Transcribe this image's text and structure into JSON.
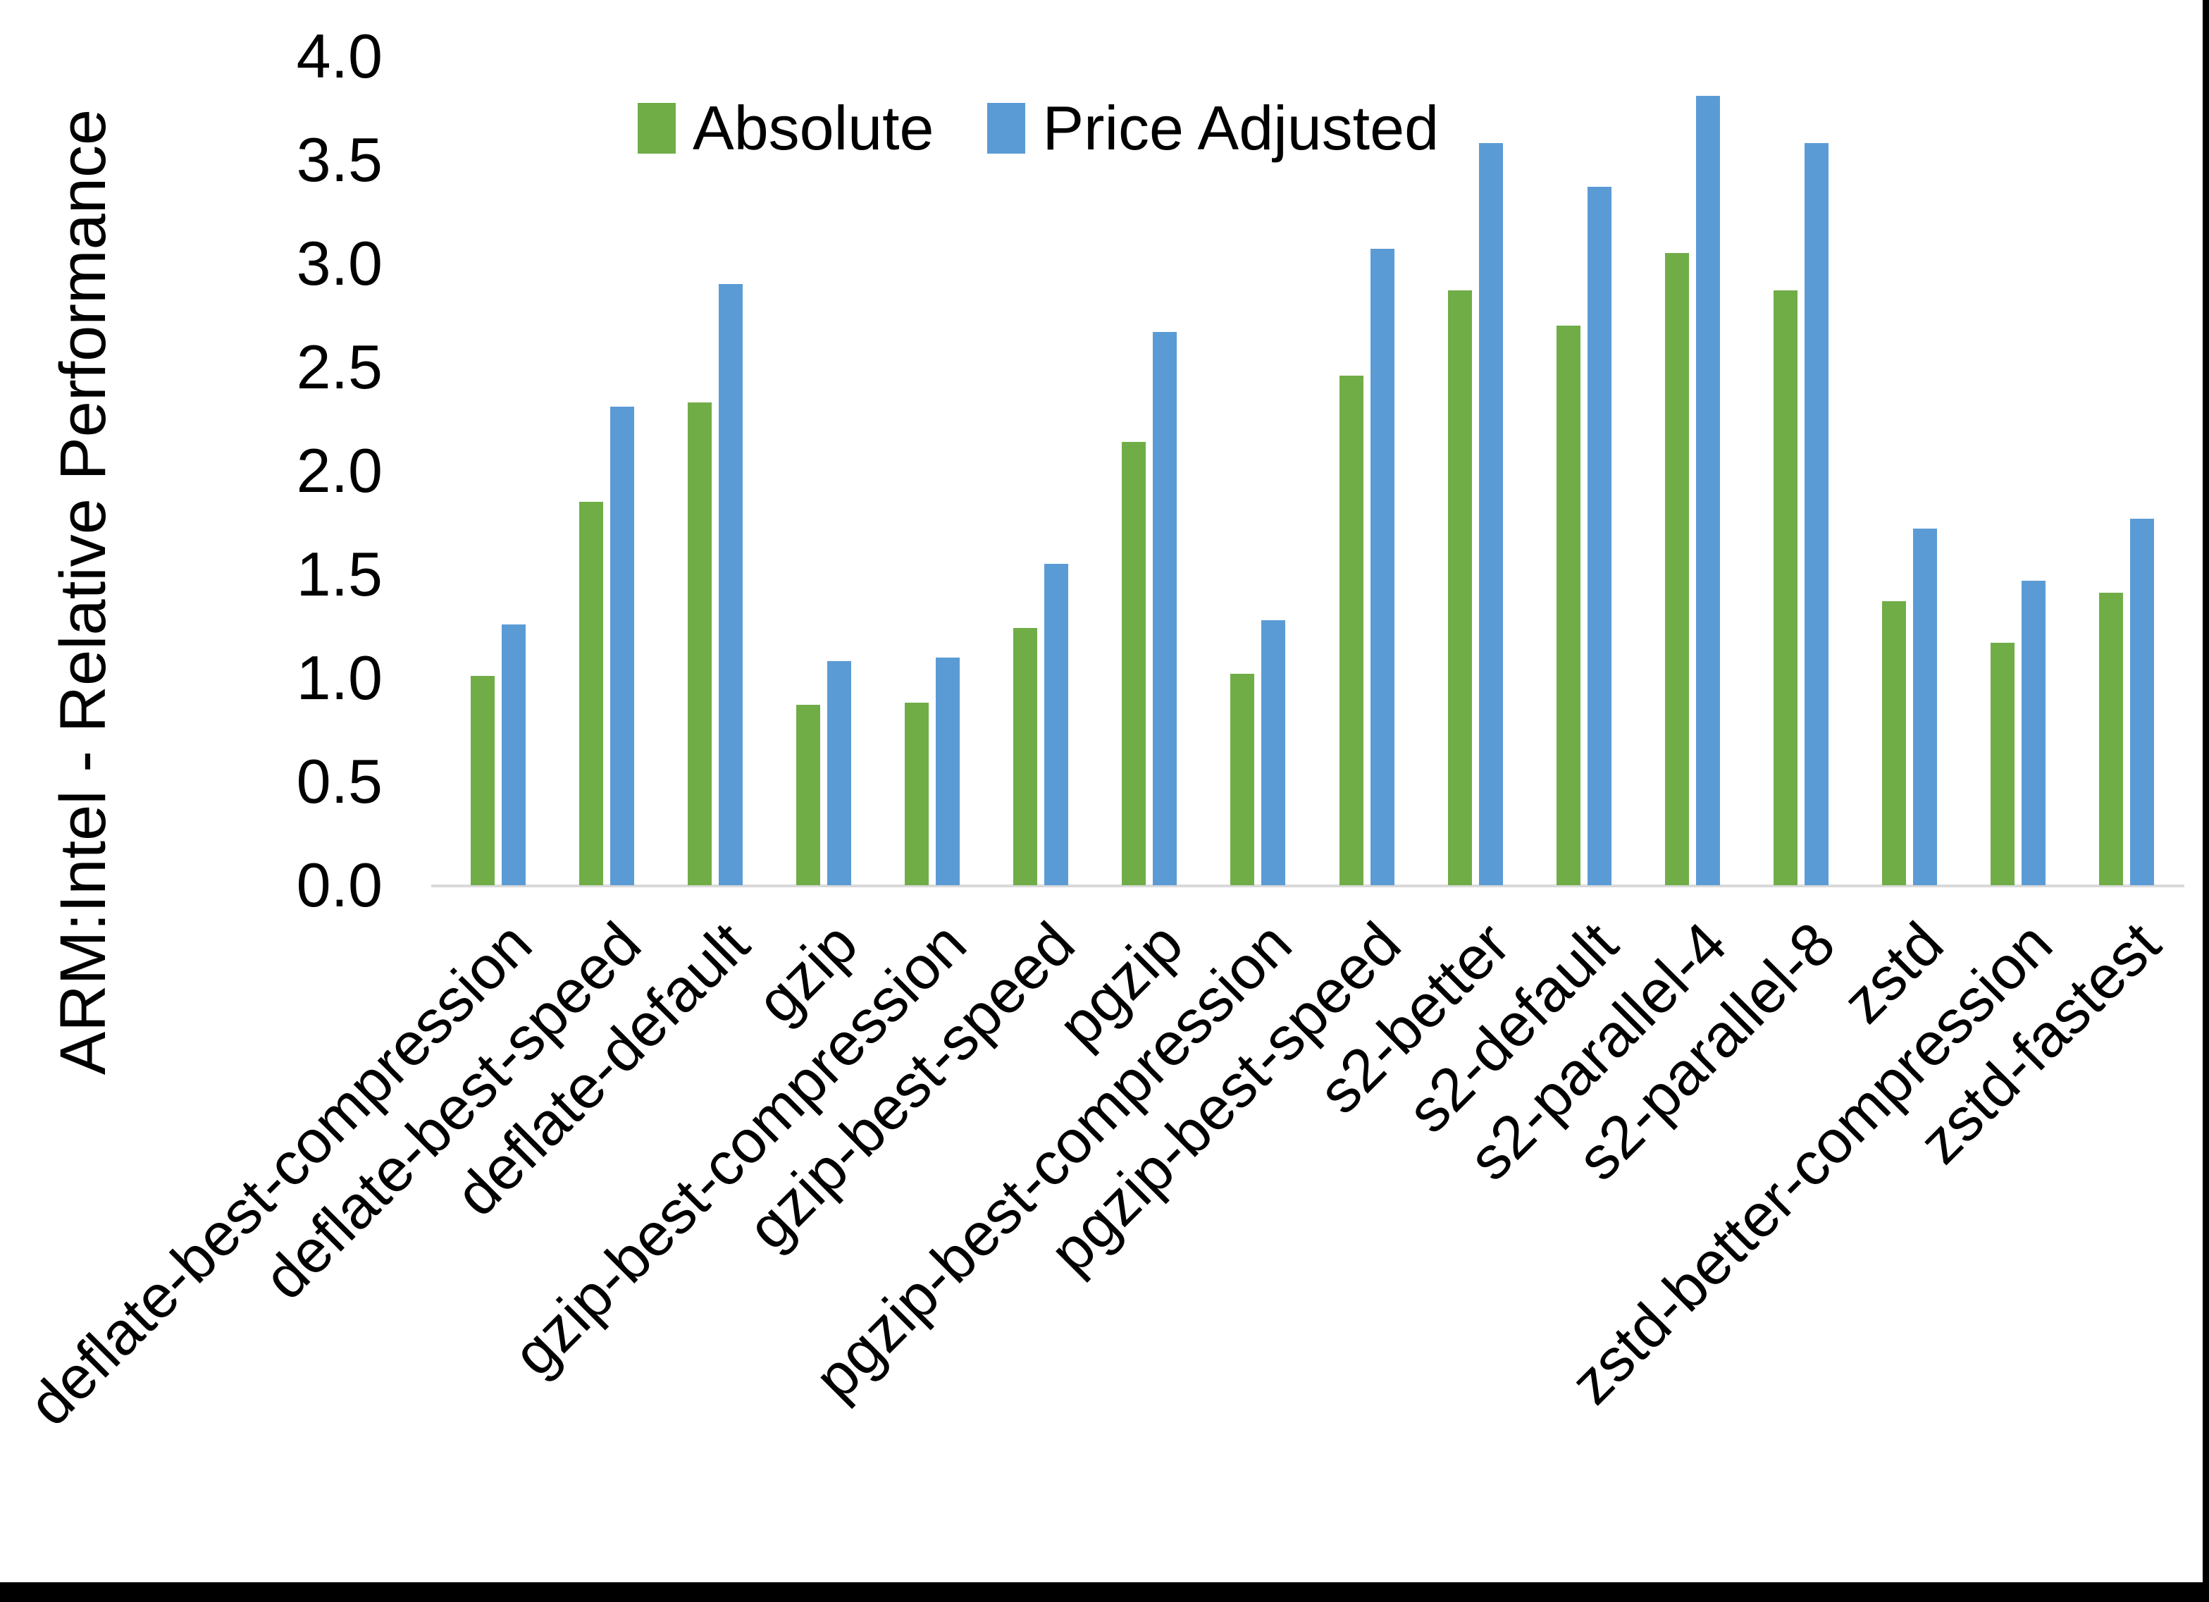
{
  "chart_data": {
    "type": "bar",
    "title": "",
    "xlabel": "",
    "ylabel": "ARM:Intel - Relative Performance",
    "ylim": [
      0.0,
      4.0
    ],
    "ytick_step": 0.5,
    "yticks": [
      "0.0",
      "0.5",
      "1.0",
      "1.5",
      "2.0",
      "2.5",
      "3.0",
      "3.5",
      "4.0"
    ],
    "grid": false,
    "legend_position": "top-center",
    "categories": [
      "deflate-best-compression",
      "deflate-best-speed",
      "deflate-default",
      "gzip",
      "gzip-best-compression",
      "gzip-best-speed",
      "pgzip",
      "pgzip-best-compression",
      "pgzip-best-speed",
      "s2-better",
      "s2-default",
      "s2-parallel-4",
      "s2-parallel-8",
      "zstd",
      "zstd-better-compression",
      "zstd-fastest"
    ],
    "series": [
      {
        "name": "Absolute",
        "color": "#70AD47",
        "values": [
          1.01,
          1.85,
          2.33,
          0.87,
          0.88,
          1.24,
          2.14,
          1.02,
          2.46,
          2.87,
          2.7,
          3.05,
          2.87,
          1.37,
          1.17,
          1.41
        ]
      },
      {
        "name": "Price Adjusted",
        "color": "#5B9BD5",
        "values": [
          1.26,
          2.31,
          2.9,
          1.08,
          1.1,
          1.55,
          2.67,
          1.28,
          3.07,
          3.58,
          3.37,
          3.81,
          3.58,
          1.72,
          1.47,
          1.77
        ]
      }
    ],
    "colors": {
      "axis_line": "#D9D9D9",
      "text": "#000000",
      "frame_border": "#000000",
      "background": "#FFFFFF"
    }
  }
}
